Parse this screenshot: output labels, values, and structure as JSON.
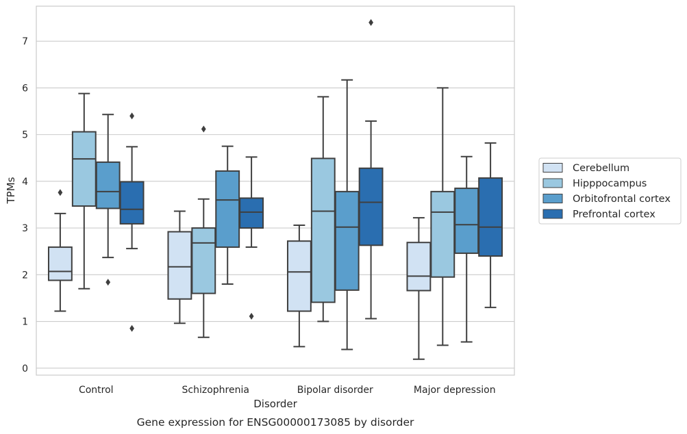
{
  "chart_data": {
    "type": "box",
    "caption": "Gene expression for ENSG00000173085 by disorder",
    "xlabel": "Disorder",
    "ylabel": "TPMs",
    "ylim": [
      -0.15,
      7.75
    ],
    "yticks": [
      0,
      1,
      2,
      3,
      4,
      5,
      6,
      7
    ],
    "grid": "horizontal",
    "legend_position": "right",
    "categories": [
      "Control",
      "Schizophrenia",
      "Bipolar disorder",
      "Major depression"
    ],
    "series": [
      {
        "name": "Cerebellum",
        "color": "#d1e2f3",
        "boxes": [
          {
            "whisker_low": 1.22,
            "q1": 1.88,
            "median": 2.07,
            "q3": 2.59,
            "whisker_high": 3.31,
            "outliers": [
              3.76
            ]
          },
          {
            "whisker_low": 0.96,
            "q1": 1.48,
            "median": 2.17,
            "q3": 2.92,
            "whisker_high": 3.36,
            "outliers": []
          },
          {
            "whisker_low": 0.46,
            "q1": 1.22,
            "median": 2.06,
            "q3": 2.72,
            "whisker_high": 3.06,
            "outliers": []
          },
          {
            "whisker_low": 0.19,
            "q1": 1.66,
            "median": 1.97,
            "q3": 2.69,
            "whisker_high": 3.22,
            "outliers": []
          }
        ]
      },
      {
        "name": "Hipppocampus",
        "color": "#9ac8e0",
        "boxes": [
          {
            "whisker_low": 1.7,
            "q1": 3.47,
            "median": 4.48,
            "q3": 5.06,
            "whisker_high": 5.88,
            "outliers": []
          },
          {
            "whisker_low": 0.66,
            "q1": 1.6,
            "median": 2.68,
            "q3": 3.0,
            "whisker_high": 3.62,
            "outliers": [
              5.12
            ]
          },
          {
            "whisker_low": 1.0,
            "q1": 1.41,
            "median": 3.36,
            "q3": 4.49,
            "whisker_high": 5.81,
            "outliers": []
          },
          {
            "whisker_low": 0.49,
            "q1": 1.95,
            "median": 3.34,
            "q3": 3.78,
            "whisker_high": 6.0,
            "outliers": []
          }
        ]
      },
      {
        "name": "Orbitofrontal cortex",
        "color": "#5a9ecc",
        "boxes": [
          {
            "whisker_low": 2.37,
            "q1": 3.42,
            "median": 3.78,
            "q3": 4.41,
            "whisker_high": 5.43,
            "outliers": [
              1.84
            ]
          },
          {
            "whisker_low": 1.8,
            "q1": 2.59,
            "median": 3.6,
            "q3": 4.22,
            "whisker_high": 4.75,
            "outliers": []
          },
          {
            "whisker_low": 0.4,
            "q1": 1.67,
            "median": 3.02,
            "q3": 3.78,
            "whisker_high": 6.17,
            "outliers": []
          },
          {
            "whisker_low": 0.56,
            "q1": 2.46,
            "median": 3.07,
            "q3": 3.85,
            "whisker_high": 4.53,
            "outliers": []
          }
        ]
      },
      {
        "name": "Prefrontal cortex",
        "color": "#2a6eb0",
        "boxes": [
          {
            "whisker_low": 2.56,
            "q1": 3.09,
            "median": 3.4,
            "q3": 3.99,
            "whisker_high": 4.74,
            "outliers": [
              5.4,
              0.85
            ]
          },
          {
            "whisker_low": 2.59,
            "q1": 3.0,
            "median": 3.34,
            "q3": 3.64,
            "whisker_high": 4.52,
            "outliers": [
              1.11
            ]
          },
          {
            "whisker_low": 1.06,
            "q1": 2.63,
            "median": 3.55,
            "q3": 4.28,
            "whisker_high": 5.29,
            "outliers": [
              7.4
            ]
          },
          {
            "whisker_low": 1.3,
            "q1": 2.4,
            "median": 3.02,
            "q3": 4.07,
            "whisker_high": 4.82,
            "outliers": []
          }
        ]
      }
    ]
  }
}
